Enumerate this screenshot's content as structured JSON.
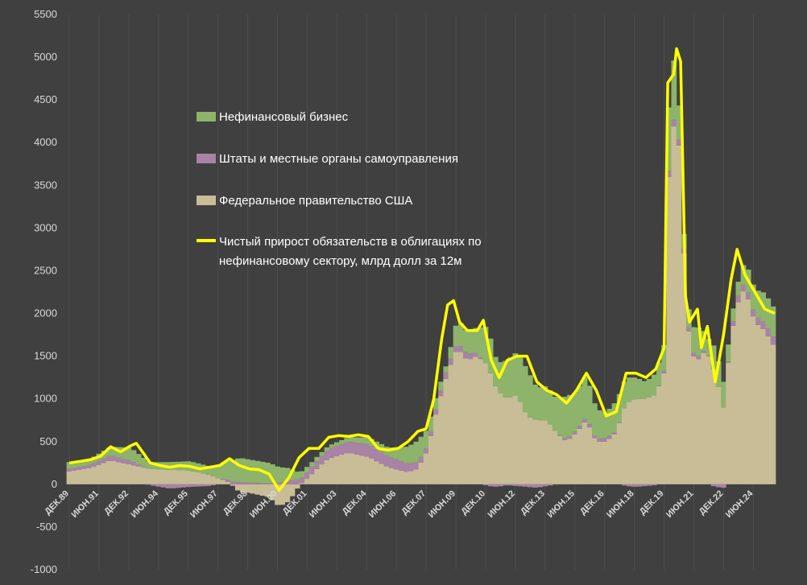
{
  "chart_data": {
    "type": "bar",
    "stacked": true,
    "ylim": [
      -1000,
      5500
    ],
    "yticks": [
      "5500",
      "5000",
      "4500",
      "4000",
      "3500",
      "3000",
      "2500",
      "2000",
      "1500",
      "1000",
      "500",
      "0",
      "-500",
      "-1000"
    ],
    "ytick_values": [
      5500,
      5000,
      4500,
      4000,
      3500,
      3000,
      2500,
      2000,
      1500,
      1000,
      500,
      0,
      -500,
      -1000
    ],
    "grid": "vertical",
    "legend_position": "upper-left",
    "xtick_labels": [
      "ДЕК.89",
      "ИЮН.91",
      "ДЕК.92",
      "ИЮН.94",
      "ДЕК.95",
      "ИЮН.97",
      "ДЕК.98",
      "ИЮН.00",
      "ДЕК.01",
      "ИЮН.03",
      "ДЕК.04",
      "ИЮН.06",
      "ДЕК.07",
      "ИЮН.09",
      "ДЕК.10",
      "ИЮН.12",
      "ДЕК.13",
      "ИЮН.15",
      "ДЕК.16",
      "ИЮН.18",
      "ДЕК.19",
      "ИЮН.21",
      "ДЕК.22",
      "ИЮН.24"
    ],
    "xtick_dates": [
      1989.917,
      1991.417,
      1992.917,
      1994.417,
      1995.917,
      1997.417,
      1998.917,
      2000.417,
      2001.917,
      2003.417,
      2004.917,
      2006.417,
      2007.917,
      2009.417,
      2010.917,
      2012.417,
      2013.917,
      2015.417,
      2016.917,
      2018.417,
      2019.917,
      2021.417,
      2022.917,
      2024.417
    ],
    "x_range": [
      1989.917,
      2025.5
    ],
    "colors": {
      "business": "#8db46a",
      "states": "#a883a6",
      "federal": "#c8bd97",
      "total": "#ffff00"
    },
    "series": [
      {
        "name": "Федеральное правительство США",
        "key": "federal",
        "kind": "bar",
        "points": [
          [
            1989.917,
            150
          ],
          [
            1991.0,
            190
          ],
          [
            1992.0,
            280
          ],
          [
            1993.0,
            230
          ],
          [
            1994.0,
            180
          ],
          [
            1995.0,
            170
          ],
          [
            1996.0,
            160
          ],
          [
            1997.0,
            110
          ],
          [
            1998.0,
            20
          ],
          [
            1998.5,
            -90
          ],
          [
            1999.0,
            -100
          ],
          [
            2000.0,
            -150
          ],
          [
            2000.5,
            -260
          ],
          [
            2001.0,
            -200
          ],
          [
            2001.5,
            -20
          ],
          [
            2002.0,
            80
          ],
          [
            2002.5,
            200
          ],
          [
            2003.0,
            300
          ],
          [
            2004.0,
            370
          ],
          [
            2005.0,
            320
          ],
          [
            2006.0,
            200
          ],
          [
            2007.0,
            140
          ],
          [
            2007.5,
            180
          ],
          [
            2008.0,
            400
          ],
          [
            2008.5,
            900
          ],
          [
            2009.0,
            1300
          ],
          [
            2009.5,
            1600
          ],
          [
            2010.0,
            1450
          ],
          [
            2010.5,
            1500
          ],
          [
            2011.0,
            1400
          ],
          [
            2011.5,
            1100
          ],
          [
            2012.0,
            1000
          ],
          [
            2012.5,
            1050
          ],
          [
            2013.0,
            800
          ],
          [
            2013.5,
            750
          ],
          [
            2014.0,
            750
          ],
          [
            2014.5,
            600
          ],
          [
            2015.0,
            500
          ],
          [
            2015.5,
            600
          ],
          [
            2016.0,
            750
          ],
          [
            2016.5,
            500
          ],
          [
            2017.0,
            500
          ],
          [
            2017.5,
            600
          ],
          [
            2018.0,
            950
          ],
          [
            2018.5,
            1000
          ],
          [
            2019.0,
            1000
          ],
          [
            2019.5,
            1050
          ],
          [
            2019.917,
            1300
          ],
          [
            2020.2,
            3900
          ],
          [
            2020.5,
            4300
          ],
          [
            2020.8,
            3700
          ],
          [
            2021.0,
            2000
          ],
          [
            2021.4,
            1500
          ],
          [
            2021.8,
            1450
          ],
          [
            2022.0,
            1600
          ],
          [
            2022.5,
            1300
          ],
          [
            2022.917,
            900
          ],
          [
            2023.3,
            1700
          ],
          [
            2023.6,
            2100
          ],
          [
            2024.0,
            2300
          ],
          [
            2024.5,
            1900
          ],
          [
            2025.0,
            1800
          ],
          [
            2025.5,
            1600
          ]
        ]
      },
      {
        "name": "Штаты и местные органы самоуправления",
        "key": "states",
        "kind": "bar",
        "points": [
          [
            1989.917,
            30
          ],
          [
            1991.0,
            40
          ],
          [
            1992.0,
            60
          ],
          [
            1993.0,
            50
          ],
          [
            1994.0,
            -10
          ],
          [
            1995.0,
            -50
          ],
          [
            1996.0,
            -30
          ],
          [
            1997.0,
            -20
          ],
          [
            1998.0,
            30
          ],
          [
            1998.5,
            30
          ],
          [
            1999.0,
            20
          ],
          [
            2000.0,
            10
          ],
          [
            2000.5,
            20
          ],
          [
            2001.0,
            40
          ],
          [
            2001.5,
            60
          ],
          [
            2002.0,
            80
          ],
          [
            2002.5,
            90
          ],
          [
            2003.0,
            110
          ],
          [
            2004.0,
            130
          ],
          [
            2005.0,
            150
          ],
          [
            2006.0,
            130
          ],
          [
            2007.0,
            100
          ],
          [
            2007.5,
            80
          ],
          [
            2008.0,
            50
          ],
          [
            2008.5,
            60
          ],
          [
            2009.0,
            80
          ],
          [
            2009.5,
            60
          ],
          [
            2010.0,
            80
          ],
          [
            2010.5,
            40
          ],
          [
            2011.0,
            -20
          ],
          [
            2011.5,
            -30
          ],
          [
            2012.0,
            -10
          ],
          [
            2012.5,
            -20
          ],
          [
            2013.0,
            -30
          ],
          [
            2013.5,
            -40
          ],
          [
            2014.0,
            -20
          ],
          [
            2014.5,
            0
          ],
          [
            2015.0,
            30
          ],
          [
            2015.5,
            30
          ],
          [
            2016.0,
            40
          ],
          [
            2016.5,
            30
          ],
          [
            2017.0,
            40
          ],
          [
            2017.5,
            20
          ],
          [
            2018.0,
            -20
          ],
          [
            2018.5,
            -30
          ],
          [
            2019.0,
            -20
          ],
          [
            2019.5,
            -10
          ],
          [
            2019.917,
            30
          ],
          [
            2020.2,
            80
          ],
          [
            2020.5,
            80
          ],
          [
            2020.8,
            60
          ],
          [
            2021.0,
            50
          ],
          [
            2021.4,
            40
          ],
          [
            2021.8,
            30
          ],
          [
            2022.0,
            20
          ],
          [
            2022.5,
            -30
          ],
          [
            2022.917,
            -40
          ],
          [
            2023.3,
            40
          ],
          [
            2023.6,
            70
          ],
          [
            2024.0,
            80
          ],
          [
            2024.5,
            80
          ],
          [
            2025.0,
            90
          ],
          [
            2025.5,
            100
          ]
        ]
      },
      {
        "name": "Нефинансовый бизнес",
        "key": "business",
        "kind": "bar",
        "points": [
          [
            1989.917,
            80
          ],
          [
            1991.0,
            70
          ],
          [
            1992.0,
            100
          ],
          [
            1993.0,
            150
          ],
          [
            1994.0,
            80
          ],
          [
            1995.0,
            90
          ],
          [
            1996.0,
            110
          ],
          [
            1997.0,
            100
          ],
          [
            1998.0,
            230
          ],
          [
            1998.5,
            280
          ],
          [
            1999.0,
            270
          ],
          [
            2000.0,
            240
          ],
          [
            2000.5,
            180
          ],
          [
            2001.0,
            150
          ],
          [
            2001.5,
            80
          ],
          [
            2002.0,
            60
          ],
          [
            2002.5,
            50
          ],
          [
            2003.0,
            40
          ],
          [
            2004.0,
            50
          ],
          [
            2005.0,
            80
          ],
          [
            2006.0,
            100
          ],
          [
            2007.0,
            200
          ],
          [
            2007.5,
            250
          ],
          [
            2008.0,
            200
          ],
          [
            2008.5,
            120
          ],
          [
            2009.0,
            60
          ],
          [
            2009.5,
            280
          ],
          [
            2010.0,
            250
          ],
          [
            2010.5,
            300
          ],
          [
            2011.0,
            450
          ],
          [
            2011.5,
            320
          ],
          [
            2012.0,
            450
          ],
          [
            2012.5,
            500
          ],
          [
            2013.0,
            550
          ],
          [
            2013.5,
            380
          ],
          [
            2014.0,
            400
          ],
          [
            2014.5,
            400
          ],
          [
            2015.0,
            500
          ],
          [
            2015.5,
            450
          ],
          [
            2016.0,
            500
          ],
          [
            2016.5,
            350
          ],
          [
            2017.0,
            300
          ],
          [
            2017.5,
            350
          ],
          [
            2018.0,
            300
          ],
          [
            2018.5,
            250
          ],
          [
            2019.0,
            200
          ],
          [
            2019.5,
            250
          ],
          [
            2019.917,
            300
          ],
          [
            2020.2,
            800
          ],
          [
            2020.5,
            650
          ],
          [
            2020.8,
            200
          ],
          [
            2021.0,
            150
          ],
          [
            2021.4,
            300
          ],
          [
            2021.8,
            350
          ],
          [
            2022.0,
            150
          ],
          [
            2022.5,
            300
          ],
          [
            2022.917,
            300
          ],
          [
            2023.3,
            150
          ],
          [
            2023.6,
            150
          ],
          [
            2024.0,
            250
          ],
          [
            2024.5,
            300
          ],
          [
            2025.0,
            350
          ],
          [
            2025.5,
            350
          ]
        ]
      },
      {
        "name": "Чистый прирост обязательств в облигациях по нефинансовому сектору, млрд долл за 12м",
        "key": "total",
        "kind": "line",
        "points": [
          [
            1989.917,
            250
          ],
          [
            1990.5,
            270
          ],
          [
            1991.0,
            290
          ],
          [
            1991.5,
            330
          ],
          [
            1992.0,
            440
          ],
          [
            1992.5,
            380
          ],
          [
            1993.0,
            450
          ],
          [
            1993.3,
            480
          ],
          [
            1993.7,
            350
          ],
          [
            1994.0,
            250
          ],
          [
            1994.5,
            220
          ],
          [
            1995.0,
            200
          ],
          [
            1995.5,
            220
          ],
          [
            1996.0,
            210
          ],
          [
            1996.5,
            180
          ],
          [
            1997.0,
            200
          ],
          [
            1997.5,
            220
          ],
          [
            1998.0,
            300
          ],
          [
            1998.5,
            220
          ],
          [
            1999.0,
            180
          ],
          [
            1999.5,
            170
          ],
          [
            2000.0,
            120
          ],
          [
            2000.5,
            -70
          ],
          [
            2001.0,
            80
          ],
          [
            2001.5,
            310
          ],
          [
            2002.0,
            420
          ],
          [
            2002.5,
            420
          ],
          [
            2003.0,
            550
          ],
          [
            2003.5,
            570
          ],
          [
            2004.0,
            560
          ],
          [
            2004.5,
            580
          ],
          [
            2005.0,
            560
          ],
          [
            2005.5,
            420
          ],
          [
            2006.0,
            400
          ],
          [
            2006.5,
            420
          ],
          [
            2007.0,
            500
          ],
          [
            2007.5,
            620
          ],
          [
            2007.917,
            650
          ],
          [
            2008.3,
            1000
          ],
          [
            2008.7,
            1700
          ],
          [
            2009.0,
            2100
          ],
          [
            2009.3,
            2150
          ],
          [
            2009.6,
            1900
          ],
          [
            2010.0,
            1800
          ],
          [
            2010.5,
            1800
          ],
          [
            2010.8,
            1920
          ],
          [
            2011.2,
            1450
          ],
          [
            2011.6,
            1250
          ],
          [
            2012.0,
            1450
          ],
          [
            2012.5,
            1500
          ],
          [
            2013.0,
            1500
          ],
          [
            2013.5,
            1200
          ],
          [
            2014.0,
            1100
          ],
          [
            2014.5,
            1050
          ],
          [
            2015.0,
            950
          ],
          [
            2015.5,
            1100
          ],
          [
            2016.0,
            1300
          ],
          [
            2016.5,
            1100
          ],
          [
            2017.0,
            800
          ],
          [
            2017.5,
            850
          ],
          [
            2018.0,
            1300
          ],
          [
            2018.5,
            1300
          ],
          [
            2019.0,
            1250
          ],
          [
            2019.5,
            1350
          ],
          [
            2019.917,
            1600
          ],
          [
            2020.1,
            4700
          ],
          [
            2020.4,
            4800
          ],
          [
            2020.55,
            5100
          ],
          [
            2020.75,
            4950
          ],
          [
            2021.0,
            2200
          ],
          [
            2021.2,
            1900
          ],
          [
            2021.6,
            2050
          ],
          [
            2021.8,
            1600
          ],
          [
            2022.1,
            1850
          ],
          [
            2022.5,
            1200
          ],
          [
            2022.917,
            1750
          ],
          [
            2023.3,
            2400
          ],
          [
            2023.6,
            2750
          ],
          [
            2024.0,
            2450
          ],
          [
            2024.5,
            2250
          ],
          [
            2025.0,
            2050
          ],
          [
            2025.5,
            2000
          ]
        ]
      }
    ],
    "legend": {
      "business": "Нефинансовый бизнес",
      "states": "Штаты и местные органы самоуправления",
      "federal": "Федеральное правительство США",
      "total_line1": "Чистый прирост обязательств в облигациях по",
      "total_line2": "нефинансовому сектору, млрд долл за 12м"
    }
  }
}
